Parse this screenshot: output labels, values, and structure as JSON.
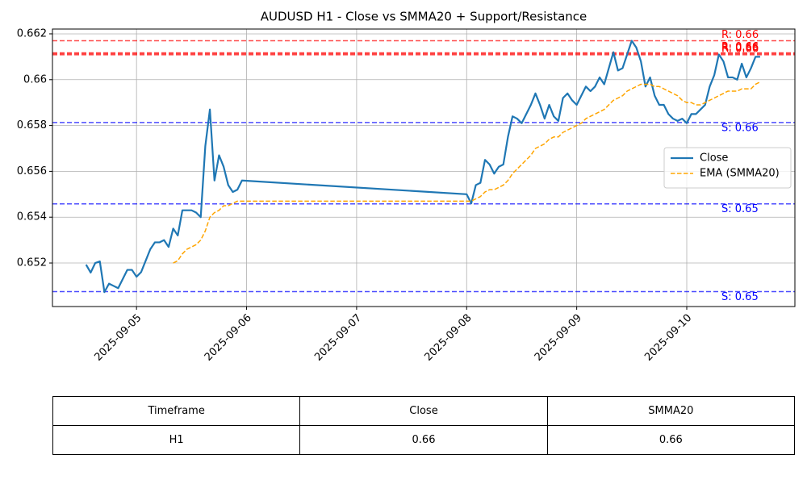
{
  "chart_data": {
    "type": "line",
    "title": "AUDUSD H1 - Close vs SMMA20 + Support/Resistance",
    "x": [
      "2025-09-04 13:00",
      "2025-09-04 14:00",
      "2025-09-04 15:00",
      "2025-09-04 16:00",
      "2025-09-04 17:00",
      "2025-09-04 18:00",
      "2025-09-04 19:00",
      "2025-09-04 20:00",
      "2025-09-04 21:00",
      "2025-09-04 22:00",
      "2025-09-04 23:00",
      "2025-09-05 00:00",
      "2025-09-05 01:00",
      "2025-09-05 02:00",
      "2025-09-05 03:00",
      "2025-09-05 04:00",
      "2025-09-05 05:00",
      "2025-09-05 06:00",
      "2025-09-05 07:00",
      "2025-09-05 08:00",
      "2025-09-05 09:00",
      "2025-09-05 10:00",
      "2025-09-05 11:00",
      "2025-09-05 12:00",
      "2025-09-05 13:00",
      "2025-09-05 14:00",
      "2025-09-05 15:00",
      "2025-09-05 16:00",
      "2025-09-05 17:00",
      "2025-09-05 18:00",
      "2025-09-05 19:00",
      "2025-09-05 20:00",
      "2025-09-05 21:00",
      "2025-09-05 22:00",
      "2025-09-05 23:00",
      "2025-09-08 00:00",
      "2025-09-08 01:00",
      "2025-09-08 02:00",
      "2025-09-08 03:00",
      "2025-09-08 04:00",
      "2025-09-08 05:00",
      "2025-09-08 06:00",
      "2025-09-08 07:00",
      "2025-09-08 08:00",
      "2025-09-08 09:00",
      "2025-09-08 10:00",
      "2025-09-08 11:00",
      "2025-09-08 12:00",
      "2025-09-08 13:00",
      "2025-09-08 14:00",
      "2025-09-08 15:00",
      "2025-09-08 16:00",
      "2025-09-08 17:00",
      "2025-09-08 18:00",
      "2025-09-08 19:00",
      "2025-09-08 20:00",
      "2025-09-08 21:00",
      "2025-09-08 22:00",
      "2025-09-08 23:00",
      "2025-09-09 00:00",
      "2025-09-09 01:00",
      "2025-09-09 02:00",
      "2025-09-09 03:00",
      "2025-09-09 04:00",
      "2025-09-09 05:00",
      "2025-09-09 06:00",
      "2025-09-09 07:00",
      "2025-09-09 08:00",
      "2025-09-09 09:00",
      "2025-09-09 10:00",
      "2025-09-09 11:00",
      "2025-09-09 12:00",
      "2025-09-09 13:00",
      "2025-09-09 14:00",
      "2025-09-09 15:00",
      "2025-09-09 16:00",
      "2025-09-09 17:00",
      "2025-09-09 18:00",
      "2025-09-09 19:00",
      "2025-09-09 20:00",
      "2025-09-09 21:00",
      "2025-09-09 22:00",
      "2025-09-09 23:00",
      "2025-09-10 00:00",
      "2025-09-10 01:00",
      "2025-09-10 02:00",
      "2025-09-10 03:00",
      "2025-09-10 04:00",
      "2025-09-10 05:00",
      "2025-09-10 06:00",
      "2025-09-10 07:00",
      "2025-09-10 08:00",
      "2025-09-10 09:00",
      "2025-09-10 10:00",
      "2025-09-10 11:00",
      "2025-09-10 12:00",
      "2025-09-10 13:00",
      "2025-09-10 14:00",
      "2025-09-10 15:00",
      "2025-09-10 16:00"
    ],
    "series": [
      {
        "name": "Close",
        "color": "#1f77b4",
        "dashed": false,
        "values": [
          0.65193,
          0.65158,
          0.652,
          0.65207,
          0.65073,
          0.6511,
          0.651,
          0.6509,
          0.6513,
          0.6517,
          0.6517,
          0.6514,
          0.6516,
          0.6521,
          0.6526,
          0.6529,
          0.6529,
          0.653,
          0.6527,
          0.6535,
          0.6532,
          0.6543,
          0.6543,
          0.6543,
          0.6542,
          0.654,
          0.6571,
          0.6587,
          0.6556,
          0.6567,
          0.6562,
          0.6554,
          0.6551,
          0.6552,
          0.6556,
          0.655,
          0.6546,
          0.6554,
          0.6555,
          0.6565,
          0.6563,
          0.6559,
          0.6562,
          0.6563,
          0.6575,
          0.6584,
          0.6583,
          0.6581,
          0.6585,
          0.6589,
          0.6594,
          0.6589,
          0.6583,
          0.6589,
          0.6584,
          0.6582,
          0.6592,
          0.6594,
          0.6591,
          0.6589,
          0.6593,
          0.6597,
          0.6595,
          0.6597,
          0.6601,
          0.6598,
          0.6605,
          0.6612,
          0.6604,
          0.6605,
          0.6611,
          0.6617,
          0.6614,
          0.6608,
          0.6597,
          0.6601,
          0.6593,
          0.6589,
          0.6589,
          0.6585,
          0.6583,
          0.6582,
          0.6583,
          0.6581,
          0.6585,
          0.6585,
          0.6587,
          0.6589,
          0.6597,
          0.6602,
          0.6611,
          0.6608,
          0.6601,
          0.6601,
          0.66,
          0.6607,
          0.6601,
          0.6605,
          0.661,
          0.661
        ]
      },
      {
        "name": "EMA (SMMA20)",
        "color": "#ffa500",
        "dashed": true,
        "values": [
          null,
          null,
          null,
          null,
          null,
          null,
          null,
          null,
          null,
          null,
          null,
          null,
          null,
          null,
          null,
          null,
          null,
          null,
          null,
          0.652,
          0.6521,
          0.6524,
          0.6526,
          0.6527,
          0.6528,
          0.653,
          0.6534,
          0.654,
          0.6542,
          0.6543,
          0.6545,
          0.6545,
          0.6546,
          0.6547,
          0.6547,
          0.6547,
          0.6547,
          0.6548,
          0.6549,
          0.6551,
          0.6552,
          0.6552,
          0.6553,
          0.6554,
          0.6556,
          0.6559,
          0.6561,
          0.6563,
          0.6565,
          0.6567,
          0.657,
          0.6571,
          0.6572,
          0.6574,
          0.6575,
          0.6575,
          0.6577,
          0.6578,
          0.6579,
          0.658,
          0.6581,
          0.6583,
          0.6584,
          0.6585,
          0.6586,
          0.6587,
          0.6589,
          0.6591,
          0.6592,
          0.6593,
          0.6595,
          0.6596,
          0.6597,
          0.6598,
          0.6598,
          0.6598,
          0.6597,
          0.6597,
          0.6596,
          0.6595,
          0.6594,
          0.6593,
          0.6591,
          0.659,
          0.659,
          0.6589,
          0.6589,
          0.659,
          0.6591,
          0.6592,
          0.6593,
          0.6594,
          0.6595,
          0.6595,
          0.6595,
          0.6596,
          0.6596,
          0.6596,
          0.6598,
          0.6599
        ]
      }
    ],
    "resistance": {
      "color": "#ff0000",
      "levels": [
        {
          "value": 0.6617,
          "label": "R: 0.66"
        },
        {
          "value": 0.66117,
          "label": "R: 0.66"
        },
        {
          "value": 0.66113,
          "label": "R: 0.66"
        },
        {
          "value": 0.66109,
          "label": "R: 0.66"
        }
      ]
    },
    "support": {
      "color": "#0000ff",
      "levels": [
        {
          "value": 0.65813,
          "label": "S: 0.66"
        },
        {
          "value": 0.65458,
          "label": "S: 0.65"
        },
        {
          "value": 0.65075,
          "label": "S: 0.65"
        }
      ]
    },
    "xlim": [
      "2025-09-04 05:40",
      "2025-09-10 23:35"
    ],
    "xticks": [
      "2025-09-05",
      "2025-09-06",
      "2025-09-07",
      "2025-09-08",
      "2025-09-09",
      "2025-09-10"
    ],
    "ylim": [
      0.6501,
      0.66221
    ],
    "yticks": [
      0.652,
      0.654,
      0.656,
      0.658,
      0.66,
      0.662
    ],
    "grid": true,
    "legend": "center right"
  },
  "table": {
    "columns": [
      "Timeframe",
      "Close",
      "SMMA20"
    ],
    "rows": [
      [
        "H1",
        "0.66",
        "0.66"
      ]
    ]
  }
}
